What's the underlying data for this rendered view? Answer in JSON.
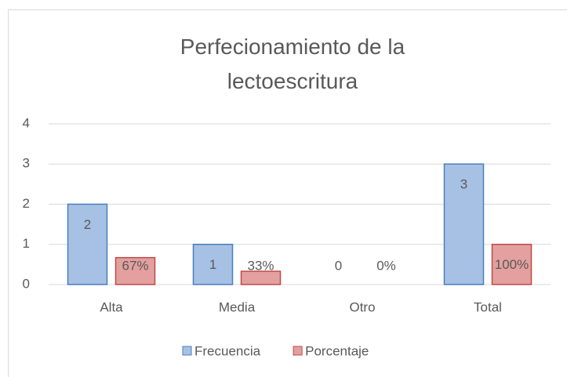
{
  "chart_data": {
    "type": "bar",
    "title": "Perfecionamiento de la lectoescritura",
    "categories": [
      "Alta",
      "Media",
      "Otro",
      "Total"
    ],
    "series": [
      {
        "name": "Frecuencia",
        "color": "#a7c1e4",
        "stroke": "#4a7ebb",
        "values": [
          2,
          1,
          0,
          3
        ]
      },
      {
        "name": "Porcentaje",
        "color": "#e3a09f",
        "stroke": "#be4b48",
        "values": [
          0.67,
          0.33,
          0,
          1
        ],
        "value_labels": [
          "67%",
          "33%",
          "0%",
          "100%"
        ]
      }
    ],
    "ylim": [
      0,
      4
    ],
    "yticks": [
      0,
      1,
      2,
      3,
      4
    ],
    "grid": true,
    "legend": "bottom"
  }
}
